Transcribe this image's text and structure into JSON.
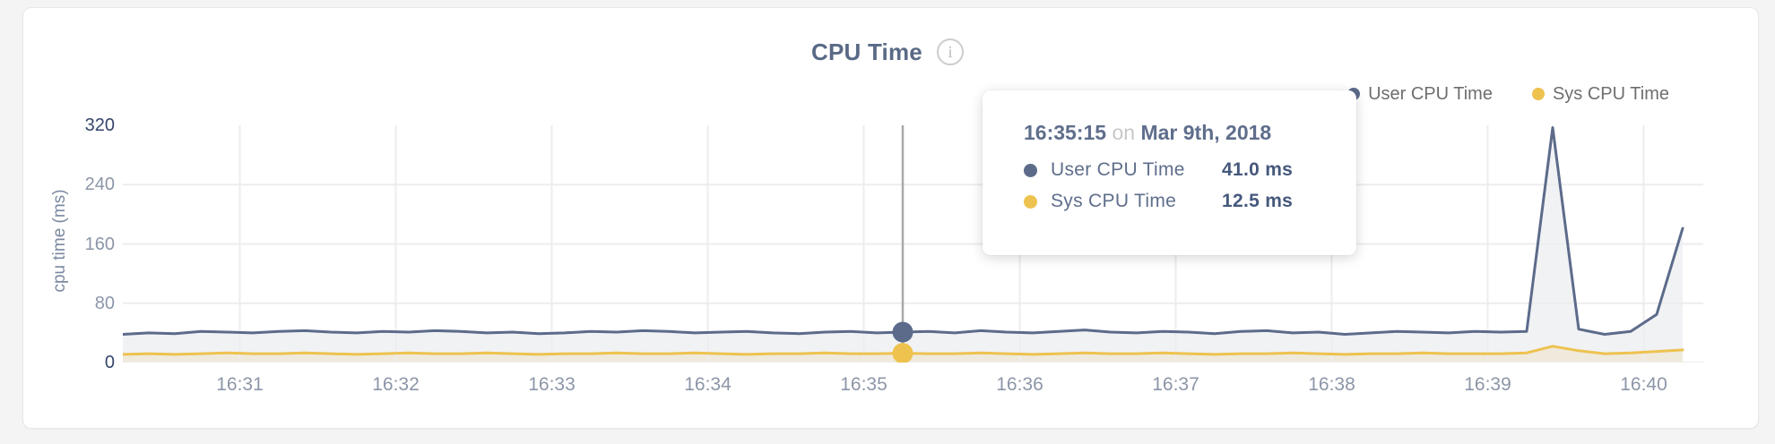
{
  "header": {
    "title": "CPU Time"
  },
  "axes": {
    "y_title": "cpu time (ms)"
  },
  "legend": [
    {
      "label": "User CPU Time",
      "color": "#5c6b8a"
    },
    {
      "label": "Sys CPU Time",
      "color": "#eec24f"
    }
  ],
  "tooltip": {
    "time": "16:35:15",
    "connector": "on",
    "date": "Mar 9th, 2018",
    "rows": [
      {
        "label": "User CPU Time",
        "value": "41.0 ms",
        "color": "#5c6b8a"
      },
      {
        "label": "Sys CPU Time",
        "value": "12.5 ms",
        "color": "#eec24f"
      }
    ]
  },
  "chart_data": {
    "type": "area",
    "title": "CPU Time",
    "xlabel": "",
    "ylabel": "cpu time (ms)",
    "ylim": [
      0,
      320
    ],
    "yticks": [
      0,
      80,
      160,
      240,
      320
    ],
    "xticks": [
      "16:31",
      "16:32",
      "16:33",
      "16:34",
      "16:35",
      "16:36",
      "16:37",
      "16:38",
      "16:39",
      "16:40"
    ],
    "x_start_time": "16:30:15",
    "x_interval_seconds": 10,
    "grid": true,
    "legend_position": "top-right",
    "series": [
      {
        "name": "User CPU Time",
        "color": "#5c6b8a",
        "fill": "rgba(92,107,138,0.09)",
        "values": [
          38,
          40,
          39,
          42,
          41,
          40,
          42,
          43,
          41,
          40,
          42,
          41,
          43,
          42,
          40,
          41,
          39,
          40,
          42,
          41,
          43,
          42,
          40,
          41,
          42,
          40,
          39,
          41,
          42,
          40,
          41,
          42,
          40,
          43,
          41,
          40,
          42,
          44,
          41,
          40,
          42,
          41,
          39,
          42,
          43,
          40,
          41,
          38,
          40,
          42,
          41,
          40,
          42,
          41,
          42,
          317,
          45,
          38,
          42,
          65,
          181
        ]
      },
      {
        "name": "Sys CPU Time",
        "color": "#eec24f",
        "fill": "rgba(238,194,79,0.14)",
        "values": [
          11,
          12,
          11,
          12,
          13,
          12,
          12,
          13,
          12,
          11,
          12,
          13,
          12,
          12,
          13,
          12,
          11,
          12,
          12,
          13,
          12,
          12,
          13,
          12,
          11,
          12,
          12,
          13,
          12,
          12,
          12.5,
          12,
          12,
          13,
          12,
          11,
          12,
          13,
          12,
          12,
          13,
          12,
          11,
          12,
          12,
          13,
          12,
          11,
          12,
          12,
          13,
          12,
          12,
          12,
          13,
          22,
          16,
          12,
          13,
          15,
          17
        ]
      }
    ],
    "hover": {
      "index": 30,
      "time": "16:35:15",
      "date": "Mar 9th, 2018",
      "values": [
        41.0,
        12.5
      ]
    }
  }
}
